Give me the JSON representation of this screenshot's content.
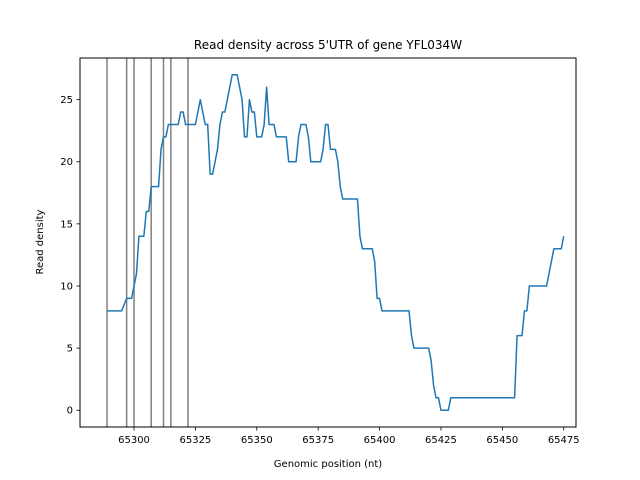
{
  "chart_data": {
    "type": "line",
    "title": "Read density across 5'UTR of gene YFL034W",
    "xlabel": "Genomic position (nt)",
    "ylabel": "Read density",
    "xlim": [
      65278,
      65480
    ],
    "ylim": [
      -1.35,
      28.35
    ],
    "x_ticks": [
      65300,
      65325,
      65350,
      65375,
      65400,
      65425,
      65450,
      65475
    ],
    "y_ticks": [
      0,
      5,
      10,
      15,
      20,
      25
    ],
    "grid": false,
    "colors": {
      "line": "#1f77b4",
      "vlines": "#808080"
    },
    "vertical_lines": [
      65289,
      65297,
      65300,
      65307,
      65312,
      65315,
      65322
    ],
    "series": [
      {
        "x": [
          65289,
          65295,
          65297,
          65299,
          65300,
          65301,
          65302,
          65303,
          65304,
          65305,
          65306,
          65307,
          65308,
          65309,
          65310,
          65311,
          65312,
          65313,
          65314,
          65315,
          65316,
          65317,
          65318,
          65319,
          65320,
          65321,
          65322,
          65323,
          65324,
          65325,
          65326,
          65327,
          65328,
          65329,
          65330,
          65331,
          65332,
          65333,
          65334,
          65335,
          65336,
          65337,
          65338,
          65339,
          65340,
          65341,
          65342,
          65343,
          65344,
          65345,
          65346,
          65347,
          65348,
          65349,
          65350,
          65351,
          65352,
          65353,
          65354,
          65355,
          65356,
          65357,
          65358,
          65359,
          65360,
          65361,
          65362,
          65363,
          65364,
          65365,
          65366,
          65367,
          65368,
          65369,
          65370,
          65371,
          65372,
          65373,
          65374,
          65375,
          65376,
          65377,
          65378,
          65379,
          65380,
          65381,
          65382,
          65383,
          65384,
          65385,
          65386,
          65387,
          65388,
          65389,
          65390,
          65391,
          65392,
          65393,
          65394,
          65395,
          65396,
          65397,
          65398,
          65399,
          65400,
          65401,
          65402,
          65403,
          65404,
          65405,
          65406,
          65407,
          65408,
          65409,
          65410,
          65411,
          65412,
          65413,
          65414,
          65415,
          65420,
          65421,
          65422,
          65423,
          65424,
          65425,
          65426,
          65427,
          65428,
          65429,
          65430,
          65431,
          65432,
          65455,
          65456,
          65457,
          65458,
          65459,
          65460,
          65461,
          65462,
          65463,
          65464,
          65465,
          65466,
          65467,
          65468,
          65469,
          65470,
          65471,
          65472,
          65473,
          65474,
          65475
        ],
        "values": [
          8,
          8,
          9,
          9,
          10,
          11,
          14,
          14,
          14,
          16,
          16,
          18,
          18,
          18,
          18,
          21,
          22,
          22,
          23,
          23,
          23,
          23,
          23,
          24,
          24,
          23,
          23,
          23,
          23,
          23,
          24,
          25,
          24,
          23,
          23,
          19,
          19,
          20,
          21,
          23,
          24,
          24,
          25,
          26,
          27,
          27,
          27,
          26,
          25,
          22,
          22,
          25,
          24,
          24,
          22,
          22,
          22,
          23,
          26,
          23,
          23,
          23,
          22,
          22,
          22,
          22,
          22,
          20,
          20,
          20,
          20,
          22,
          23,
          23,
          23,
          22,
          20,
          20,
          20,
          20,
          20,
          21,
          23,
          23,
          21,
          21,
          21,
          20,
          18,
          17,
          17,
          17,
          17,
          17,
          17,
          17,
          14,
          13,
          13,
          13,
          13,
          13,
          12,
          9,
          9,
          8,
          8,
          8,
          8,
          8,
          8,
          8,
          8,
          8,
          8,
          8,
          8,
          6,
          5,
          5,
          5,
          4,
          2,
          1,
          1,
          0,
          0,
          0,
          0,
          1,
          1,
          1,
          1,
          1,
          6,
          6,
          6,
          8,
          8,
          10,
          10,
          10,
          10,
          10,
          10,
          10,
          10,
          11,
          12,
          13,
          13,
          13,
          13,
          14
        ]
      }
    ]
  }
}
